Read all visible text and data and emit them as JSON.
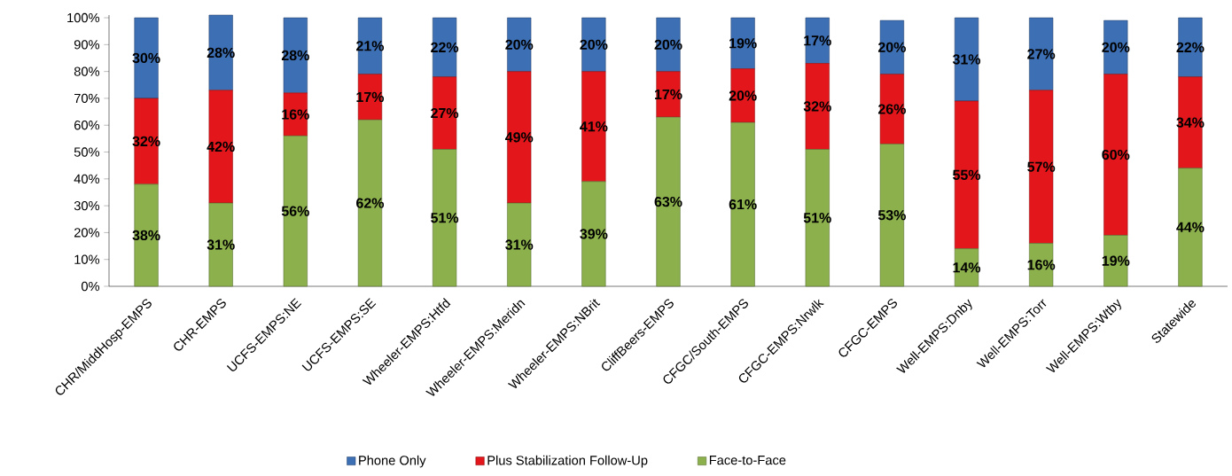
{
  "chart_data": {
    "type": "bar",
    "stacked": true,
    "legend": "bottom",
    "categories": [
      "CHR/MiddHosp-EMPS",
      "CHR-EMPS",
      "UCFS-EMPS:NE",
      "UCFS-EMPS:SE",
      "Wheeler-EMPS:Htfd",
      "Wheeler-EMPS:Meridn",
      "Wheeler-EMPS:NBrit",
      "CliffBeers-EMPS",
      "CFGC/South-EMPS",
      "CFGC-EMPS:Nrwlk",
      "CFGC-EMPS",
      "Well-EMPS:Dnby",
      "Well-EMPS:Torr",
      "Well-EMPS:Wtby",
      "Statewide"
    ],
    "series": [
      {
        "name": "Face-to-Face",
        "color": "#8cb04c",
        "values": [
          38,
          31,
          56,
          62,
          51,
          31,
          39,
          63,
          61,
          51,
          53,
          14,
          16,
          19,
          44
        ],
        "value_labels": [
          "38%",
          "31%",
          "56%",
          "62%",
          "51%",
          "31%",
          "39%",
          "63%",
          "61%",
          "51%",
          "53%",
          "14%",
          "16%",
          "19%",
          "44%"
        ]
      },
      {
        "name": "Plus Stabilization Follow-Up",
        "color": "#e3161b",
        "values": [
          32,
          42,
          16,
          17,
          27,
          49,
          41,
          17,
          20,
          32,
          26,
          55,
          57,
          60,
          34
        ],
        "value_labels": [
          "32%",
          "42%",
          "16%",
          "17%",
          "27%",
          "49%",
          "41%",
          "17%",
          "20%",
          "32%",
          "26%",
          "55%",
          "57%",
          "60%",
          "34%"
        ]
      },
      {
        "name": "Phone Only",
        "color": "#3d6fb4",
        "values": [
          30,
          28,
          28,
          21,
          22,
          20,
          20,
          20,
          19,
          17,
          20,
          31,
          27,
          20,
          22
        ],
        "value_labels": [
          "30%",
          "28%",
          "28%",
          "21%",
          "22%",
          "20%",
          "20%",
          "20%",
          "19%",
          "17%",
          "20%",
          "31%",
          "27%",
          "20%",
          "22%"
        ]
      }
    ],
    "ylim": [
      0,
      101
    ],
    "yticks": [
      {
        "value": 0,
        "label": "0%"
      },
      {
        "value": 10,
        "label": "10%"
      },
      {
        "value": 20,
        "label": "20%"
      },
      {
        "value": 30,
        "label": "30%"
      },
      {
        "value": 40,
        "label": "40%"
      },
      {
        "value": 50,
        "label": "50%"
      },
      {
        "value": 60,
        "label": "60%"
      },
      {
        "value": 70,
        "label": "70%"
      },
      {
        "value": 80,
        "label": "80%"
      },
      {
        "value": 90,
        "label": "90%"
      },
      {
        "value": 100,
        "label": "100%"
      }
    ]
  }
}
